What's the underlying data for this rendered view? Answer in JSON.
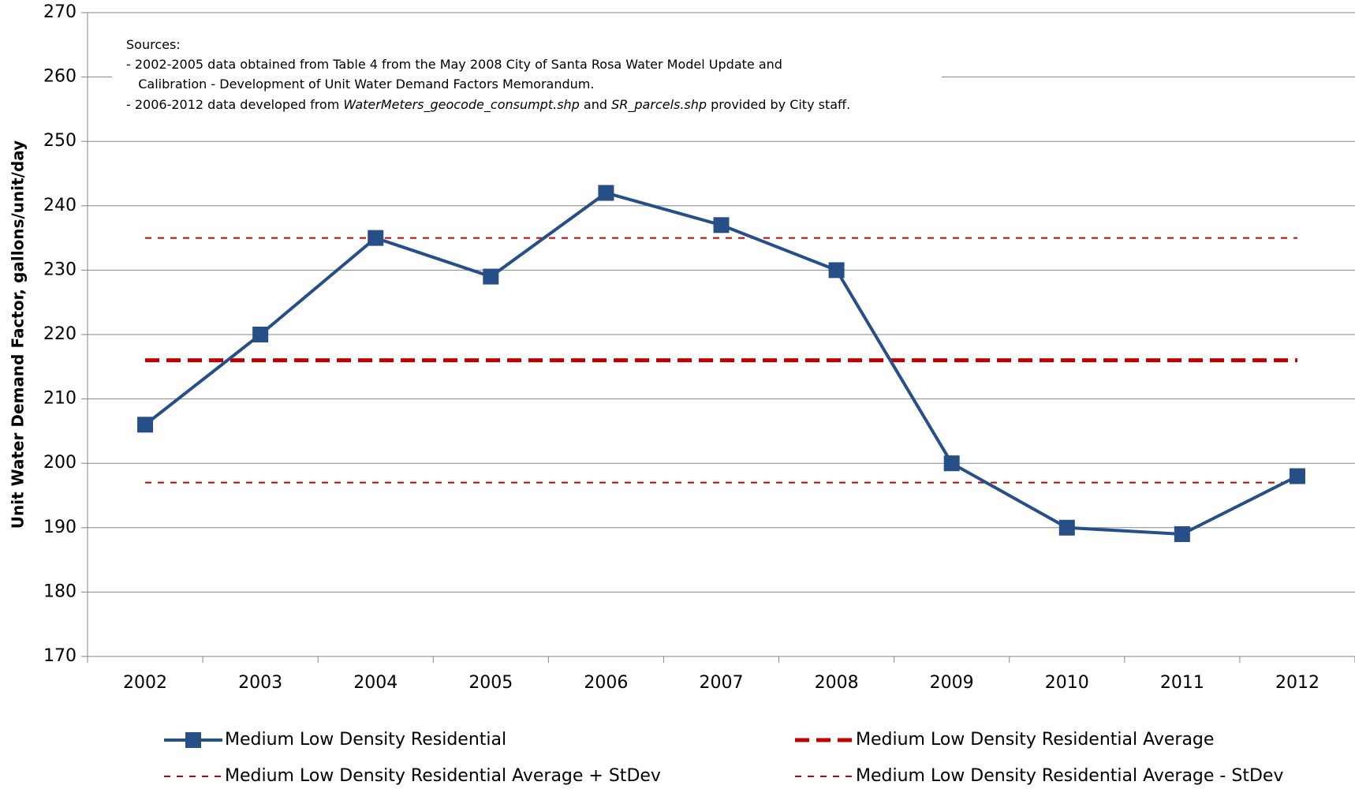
{
  "chart_data": {
    "type": "line",
    "y_label": "Unit Water Demand Factor, gallons/unit/day",
    "categories": [
      "2002",
      "2003",
      "2004",
      "2005",
      "2006",
      "2007",
      "2008",
      "2009",
      "2010",
      "2011",
      "2012"
    ],
    "series": [
      {
        "name": "Medium Low Density Residential",
        "color": "#264f87",
        "line_style": "solid",
        "marker": "square",
        "values": [
          206,
          220,
          235,
          229,
          242,
          237,
          230,
          200,
          190,
          189,
          198
        ]
      },
      {
        "name": "Medium Low Density Residential Average",
        "color": "#c00000",
        "line_style": "dashed-thick",
        "values": [
          216,
          216,
          216,
          216,
          216,
          216,
          216,
          216,
          216,
          216,
          216
        ]
      },
      {
        "name": "Medium Low Density Residential Average + StDev",
        "color": "#c00000",
        "line_style": "dashed",
        "values": [
          235,
          235,
          235,
          235,
          235,
          235,
          235,
          235,
          235,
          235,
          235
        ]
      },
      {
        "name": "Medium Low Density Residential Average - StDev",
        "color": "#c00000",
        "line_style": "dashed",
        "values": [
          197,
          197,
          197,
          197,
          197,
          197,
          197,
          197,
          197,
          197,
          197
        ]
      }
    ],
    "ylim": [
      170,
      270
    ],
    "yticks": [
      170,
      180,
      190,
      200,
      210,
      220,
      230,
      240,
      250,
      260,
      270
    ],
    "grid": true,
    "legend": "bottom",
    "annotation": [
      [
        {
          "text": "Sources:"
        }
      ],
      [
        {
          "text": "- 2002-2005 data obtained from Table 4 from the May 2008 City of Santa Rosa Water Model Update and"
        }
      ],
      [
        {
          "text": "   Calibration - Development of Unit Water Demand Factors Memorandum."
        }
      ],
      [
        {
          "text": "- 2006-2012 data developed from "
        },
        {
          "text": "WaterMeters_geocode_consumpt.shp",
          "italic": true
        },
        {
          "text": " and "
        },
        {
          "text": "SR_parcels.shp",
          "italic": true
        },
        {
          "text": " provided by City staff."
        }
      ]
    ]
  }
}
